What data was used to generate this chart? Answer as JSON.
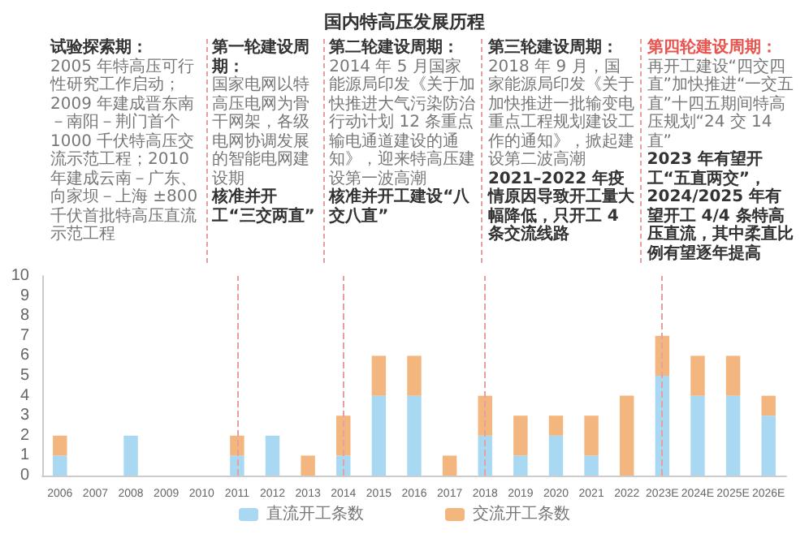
{
  "chart_data": {
    "type": "bar",
    "title": "国内特高压发展历程",
    "categories": [
      "2006",
      "2007",
      "2008",
      "2009",
      "2010",
      "2011",
      "2012",
      "2013",
      "2014",
      "2015",
      "2016",
      "2017",
      "2018",
      "2019",
      "2020",
      "2021",
      "2022",
      "2023E",
      "2024E",
      "2025E",
      "2026E"
    ],
    "series": [
      {
        "name": "直流开工条数",
        "color": "#a9d8f2",
        "values": [
          1,
          0,
          2,
          0,
          0,
          1,
          2,
          0,
          1,
          4,
          4,
          0,
          2,
          1,
          2,
          1,
          0,
          5,
          4,
          4,
          3
        ]
      },
      {
        "name": "交流开工条数",
        "color": "#f4b67f",
        "values": [
          1,
          0,
          0,
          0,
          0,
          1,
          0,
          1,
          2,
          2,
          2,
          1,
          2,
          2,
          1,
          2,
          4,
          2,
          2,
          2,
          1
        ]
      }
    ],
    "stacked": true,
    "ylim": [
      0,
      10
    ],
    "yticks": [
      0,
      1,
      2,
      3,
      4,
      5,
      6,
      7,
      8,
      9,
      10
    ],
    "grid": false,
    "legend": "bottom",
    "ref_lines": [
      {
        "axis": "x",
        "value": "2011",
        "color": "#e6a0a0",
        "line_style": "dashed"
      },
      {
        "axis": "x",
        "value": "2014",
        "color": "#e6a0a0",
        "line_style": "dashed"
      },
      {
        "axis": "x",
        "value": "2018",
        "color": "#e6a0a0",
        "line_style": "dashed"
      },
      {
        "axis": "x",
        "value": "2023E",
        "color": "#e6a0a0",
        "line_style": "dashed"
      }
    ],
    "annotations": [
      "试验探索期：",
      "2005 年特高压可行性研究工作启动；2009 年建成晋东南－南阳－荆门首个 1000 千伏特高压交流示范工程；2010 年建成云南－广东、向家坝－上海 ±800 千伏首批特高压直流示范工程",
      "第一轮建设周期：",
      "国家电网以特高压电网为骨干网架，各级电网协调发展的智能电网建设期",
      "核准并开工“三交两直”",
      "第二轮建设周期：",
      "2014 年 5 月国家能源局印发《关于加快推进大气污染防治行动计划 12 条重点输电通道建设的通知》，迎来特高压建设第一波高潮",
      "核准并开工建设“八交八直”",
      "第三轮建设周期：",
      "2018 年 9 月，国家能源局印发《关于加快推进一批输变电重点工程规划建设工作的通知》，掀起建设第二波高潮",
      "2021–2022 年疫情原因导致开工量大幅降低，只开工 4 条交流线路",
      "第四轮建设周期：",
      "再开工建设“四交四直”加快推进“一交五直”十四五期间特高压规划“24 交 14 直”",
      "2023 年有望开工“五直两交”，2024/2025 年有望开工 4/4 条特高压直流，其中柔直比例有望逐年提高"
    ]
  }
}
